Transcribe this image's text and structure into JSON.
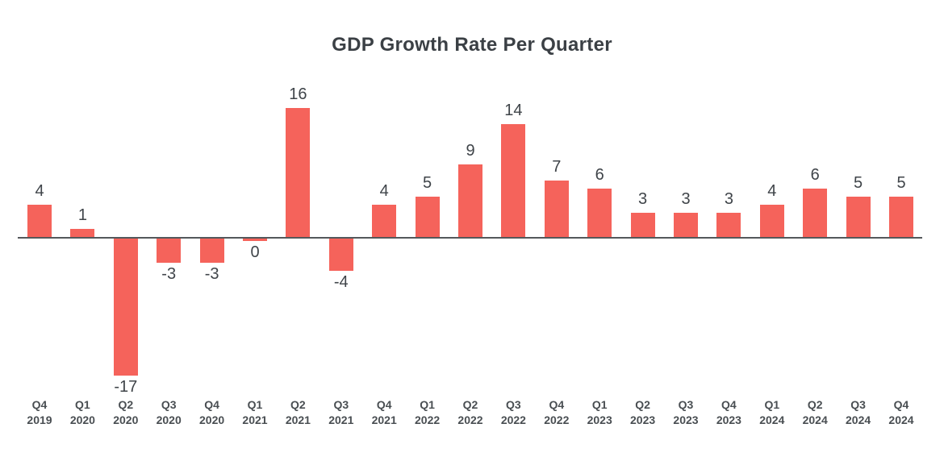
{
  "chart_data": {
    "type": "bar",
    "title": "GDP Growth Rate Per Quarter",
    "categories": [
      "Q4 2019",
      "Q1 2020",
      "Q2 2020",
      "Q3 2020",
      "Q4 2020",
      "Q1 2021",
      "Q2 2021",
      "Q3 2021",
      "Q4 2021",
      "Q1 2022",
      "Q2 2022",
      "Q3 2022",
      "Q4 2022",
      "Q1 2023",
      "Q2 2023",
      "Q3 2023",
      "Q4 2023",
      "Q1 2024",
      "Q2 2024",
      "Q3 2024",
      "Q4 2024"
    ],
    "values": [
      4,
      1,
      -17,
      -3,
      -3,
      0,
      16,
      -4,
      4,
      5,
      9,
      14,
      7,
      6,
      3,
      3,
      3,
      4,
      6,
      5,
      5
    ],
    "xlabel": "",
    "ylabel": "",
    "ylim": [
      -19,
      18
    ],
    "grid": false,
    "legend": false,
    "value_labels": true,
    "colors": {
      "bar": "#f5635b",
      "axis_line": "#54585b",
      "title_text": "#3b4045",
      "value_label_text": "#3f4449",
      "tick_label_text": "#494e52",
      "background": "#ffffff"
    }
  }
}
